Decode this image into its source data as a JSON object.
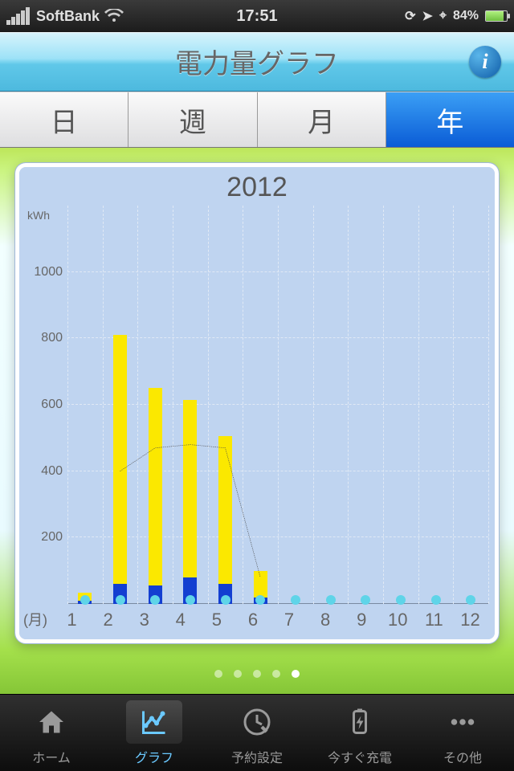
{
  "status": {
    "carrier": "SoftBank",
    "time": "17:51",
    "battery_percent": "84%"
  },
  "nav": {
    "title": "電力量グラフ"
  },
  "segments": {
    "items": [
      {
        "label": "日",
        "active": false
      },
      {
        "label": "週",
        "active": false
      },
      {
        "label": "月",
        "active": false
      },
      {
        "label": "年",
        "active": true
      }
    ]
  },
  "chart": {
    "title": "2012",
    "type": "bar",
    "y_unit": "kWh",
    "x_prefix": "(月)",
    "ylim": [
      0,
      1200
    ],
    "yticks": [
      200,
      400,
      600,
      800,
      1000
    ],
    "months": [
      "1",
      "2",
      "3",
      "4",
      "5",
      "6",
      "7",
      "8",
      "9",
      "10",
      "11",
      "12"
    ],
    "bars": [
      {
        "yellow": 35,
        "blue": 10
      },
      {
        "yellow": 810,
        "blue": 60
      },
      {
        "yellow": 650,
        "blue": 55
      },
      {
        "yellow": 615,
        "blue": 80
      },
      {
        "yellow": 505,
        "blue": 60
      },
      {
        "yellow": 100,
        "blue": 20
      },
      {
        "yellow": 0,
        "blue": 0
      },
      {
        "yellow": 0,
        "blue": 0
      },
      {
        "yellow": 0,
        "blue": 0
      },
      {
        "yellow": 0,
        "blue": 0
      },
      {
        "yellow": 0,
        "blue": 0
      },
      {
        "yellow": 0,
        "blue": 0
      }
    ],
    "line": [
      null,
      400,
      470,
      480,
      470,
      80,
      null,
      null,
      null,
      null,
      null,
      null
    ],
    "colors": {
      "bar_yellow": "#fbe800",
      "bar_blue": "#133fd1",
      "plot_bg": "#bfd4f0",
      "marker": "#5fd4e8",
      "line_color": "#4a4a4a"
    },
    "bar_width_pct": 3.3
  },
  "pagination": {
    "count": 5,
    "active": 4
  },
  "tabs": {
    "items": [
      {
        "label": "ホーム",
        "name": "tab-home"
      },
      {
        "label": "グラフ",
        "name": "tab-graph"
      },
      {
        "label": "予約設定",
        "name": "tab-reserve"
      },
      {
        "label": "今すぐ充電",
        "name": "tab-charge"
      },
      {
        "label": "その他",
        "name": "tab-other"
      }
    ],
    "active": 1
  }
}
